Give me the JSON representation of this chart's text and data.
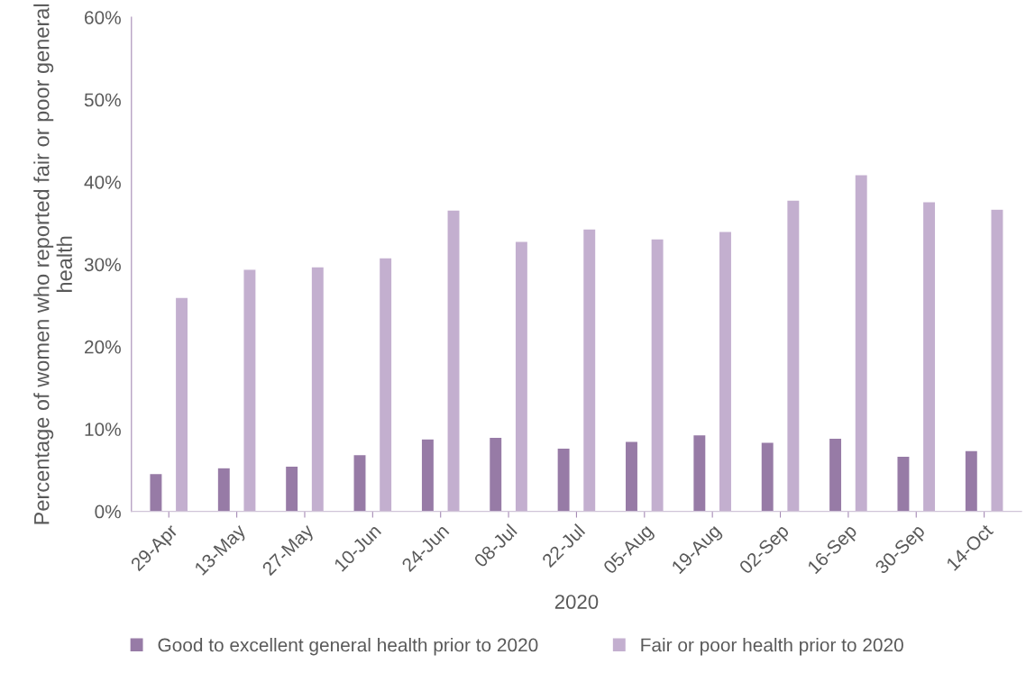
{
  "chart_data": {
    "type": "bar",
    "xlabel": "2020",
    "ylabel": "Percentage of women who reported fair or poor general health",
    "categories": [
      "29-Apr",
      "13-May",
      "27-May",
      "10-Jun",
      "24-Jun",
      "08-Jul",
      "22-Jul",
      "05-Aug",
      "19-Aug",
      "02-Sep",
      "16-Sep",
      "30-Sep",
      "14-Oct"
    ],
    "series": [
      {
        "name": "Good to excellent general health prior to 2020",
        "color": "#977ba6",
        "values": [
          4.6,
          5.3,
          5.5,
          6.9,
          8.8,
          9.0,
          7.7,
          8.5,
          9.3,
          8.4,
          8.9,
          6.7,
          7.4
        ]
      },
      {
        "name": "Fair or poor health prior to 2020",
        "color": "#c3afcf",
        "values": [
          26.0,
          29.4,
          29.7,
          30.8,
          36.6,
          32.8,
          34.3,
          33.1,
          34.0,
          37.8,
          40.9,
          37.6,
          36.7
        ]
      }
    ],
    "ylim": [
      0,
      60
    ],
    "yticks": [
      {
        "value": 0,
        "label": "0%"
      },
      {
        "value": 10,
        "label": "10%"
      },
      {
        "value": 20,
        "label": "20%"
      },
      {
        "value": 30,
        "label": "30%"
      },
      {
        "value": 40,
        "label": "40%"
      },
      {
        "value": 50,
        "label": "50%"
      },
      {
        "value": 60,
        "label": "60%"
      }
    ],
    "grid": false,
    "legend": "bottom"
  }
}
